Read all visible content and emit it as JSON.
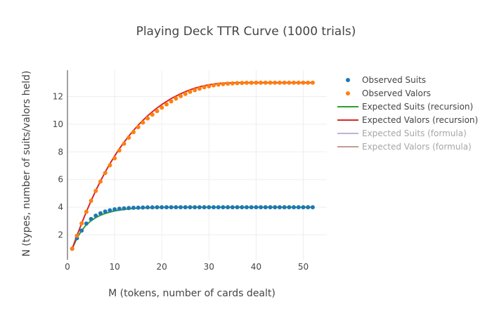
{
  "chart_data": {
    "type": "scatter",
    "title": "Playing Deck TTR Curve (1000 trials)",
    "xlabel": "M (tokens, number of cards dealt)",
    "ylabel": "N (types, number of suits/valors held)",
    "xlim": [
      0,
      55
    ],
    "ylim": [
      0.2,
      13.9
    ],
    "x_ticks": [
      0,
      10,
      20,
      30,
      40,
      50
    ],
    "y_ticks": [
      2,
      4,
      6,
      8,
      10,
      12
    ],
    "grid": true,
    "legend_position": "right",
    "x": [
      1,
      2,
      3,
      4,
      5,
      6,
      7,
      8,
      9,
      10,
      11,
      12,
      13,
      14,
      15,
      16,
      17,
      18,
      19,
      20,
      21,
      22,
      23,
      24,
      25,
      26,
      27,
      28,
      29,
      30,
      31,
      32,
      33,
      34,
      35,
      36,
      37,
      38,
      39,
      40,
      41,
      42,
      43,
      44,
      45,
      46,
      47,
      48,
      49,
      50,
      51,
      52
    ],
    "series": [
      {
        "name": "Observed Suits",
        "mode": "markers",
        "color": "#1f77b4",
        "values": [
          1.0,
          1.76,
          2.31,
          2.82,
          3.15,
          3.39,
          3.56,
          3.69,
          3.78,
          3.85,
          3.89,
          3.92,
          3.94,
          3.96,
          3.97,
          3.98,
          3.99,
          3.99,
          4.0,
          4.0,
          4.0,
          4.0,
          4.0,
          4.0,
          4.0,
          4.0,
          4.0,
          4.0,
          4.0,
          4.0,
          4.0,
          4.0,
          4.0,
          4.0,
          4.0,
          4.0,
          4.0,
          4.0,
          4.0,
          4.0,
          4.0,
          4.0,
          4.0,
          4.0,
          4.0,
          4.0,
          4.0,
          4.0,
          4.0,
          4.0,
          4.0,
          4.0
        ]
      },
      {
        "name": "Observed Valors",
        "mode": "markers",
        "color": "#ff7f0e",
        "values": [
          1.0,
          1.94,
          2.83,
          3.67,
          4.46,
          5.18,
          5.86,
          6.47,
          7.03,
          7.54,
          8.1,
          8.59,
          9.03,
          9.43,
          9.79,
          10.12,
          10.42,
          10.69,
          10.95,
          11.2,
          11.43,
          11.65,
          11.85,
          12.03,
          12.19,
          12.34,
          12.46,
          12.57,
          12.67,
          12.74,
          12.81,
          12.86,
          12.9,
          12.93,
          12.95,
          12.97,
          12.98,
          12.99,
          12.99,
          13.0,
          13.0,
          13.0,
          13.0,
          13.0,
          13.0,
          13.0,
          13.0,
          13.0,
          13.0,
          13.0,
          13.0,
          13.0
        ]
      },
      {
        "name": "Expected Suits (recursion)",
        "mode": "lines",
        "color": "#2ca02c",
        "values": [
          1.0,
          1.76,
          2.32,
          2.73,
          3.02,
          3.25,
          3.42,
          3.55,
          3.65,
          3.73,
          3.79,
          3.84,
          3.88,
          3.91,
          3.93,
          3.95,
          3.96,
          3.97,
          3.98,
          3.99,
          3.99,
          4.0,
          4.0,
          4.0,
          4.0,
          4.0,
          4.0,
          4.0,
          4.0,
          4.0,
          4.0,
          4.0,
          4.0,
          4.0,
          4.0,
          4.0,
          4.0,
          4.0,
          4.0,
          4.0,
          4.0,
          4.0,
          4.0,
          4.0,
          4.0,
          4.0,
          4.0,
          4.0,
          4.0,
          4.0,
          4.0,
          4.0
        ]
      },
      {
        "name": "Expected Valors (recursion)",
        "mode": "lines",
        "color": "#d62728",
        "values": [
          1.0,
          1.94,
          2.83,
          3.67,
          4.46,
          5.2,
          5.89,
          6.54,
          7.14,
          7.7,
          8.22,
          8.7,
          9.14,
          9.55,
          9.93,
          10.28,
          10.6,
          10.9,
          11.17,
          11.42,
          11.64,
          11.85,
          12.03,
          12.2,
          12.35,
          12.48,
          12.6,
          12.7,
          12.78,
          12.85,
          12.9,
          12.94,
          12.97,
          12.98,
          12.99,
          13.0,
          13.0,
          13.0,
          13.0,
          13.0,
          13.0,
          13.0,
          13.0,
          13.0,
          13.0,
          13.0,
          13.0,
          13.0,
          13.0,
          13.0,
          13.0,
          13.0
        ]
      },
      {
        "name": "Expected Suits (formula)",
        "mode": "lines",
        "color": "#c5b0d5",
        "legend_only": true,
        "values": []
      },
      {
        "name": "Expected Valors (formula)",
        "mode": "lines",
        "color": "#c49c94",
        "legend_only": true,
        "values": []
      }
    ]
  }
}
